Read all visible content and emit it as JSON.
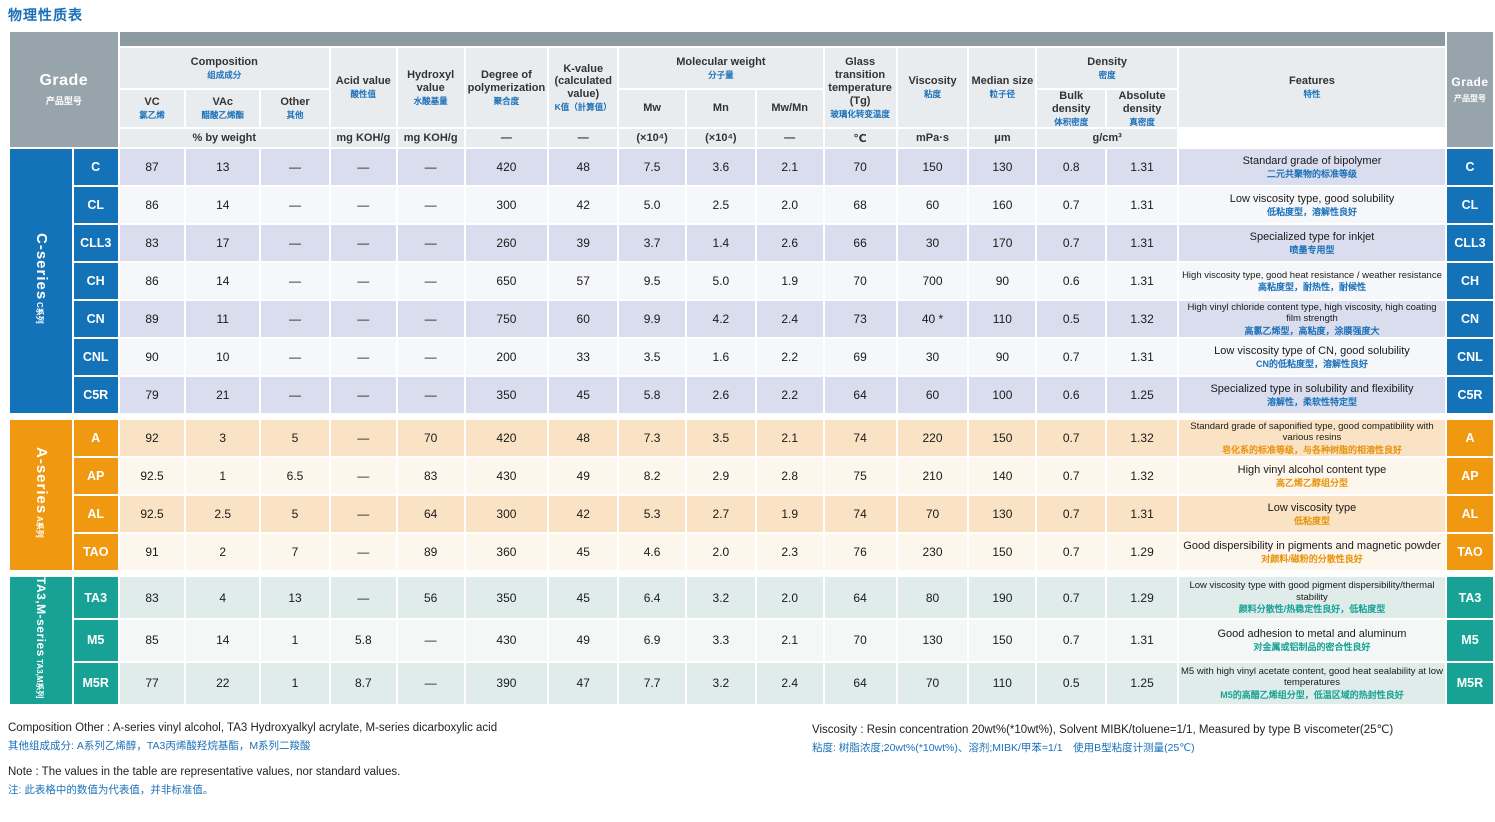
{
  "page_title": "物理性质表",
  "table": {
    "header": {
      "grade": {
        "en": "Grade",
        "zh": "产品型号"
      },
      "composition": {
        "en": "Composition",
        "zh": "组成成分",
        "unit": "% by weight"
      },
      "vc": {
        "en": "VC",
        "zh": "氯乙烯"
      },
      "vac": {
        "en": "VAc",
        "zh": "醋酸乙烯酯"
      },
      "other": {
        "en": "Other",
        "zh": "其他"
      },
      "acid": {
        "en": "Acid value",
        "zh": "酸性值",
        "unit": "mg KOH/g"
      },
      "hydroxyl": {
        "en": "Hydroxyl value",
        "zh": "水酸基量",
        "unit": "mg KOH/g"
      },
      "dp": {
        "en": "Degree of polymerization",
        "zh": "聚合度",
        "unit": "—"
      },
      "kvalue": {
        "en": "K-value (calculated value)",
        "zh": "K值（計算值）",
        "unit": "—"
      },
      "mw_group": {
        "en": "Molecular weight",
        "zh": "分子量"
      },
      "mw": {
        "en": "Mw",
        "unit": "(×10⁴)"
      },
      "mn": {
        "en": "Mn",
        "unit": "(×10⁴)"
      },
      "mwmn": {
        "en": "Mw/Mn",
        "unit": "—"
      },
      "tg": {
        "en": "Glass transition temperature (Tg)",
        "zh": "玻璃化转变温度",
        "unit": "℃"
      },
      "viscosity": {
        "en": "Viscosity",
        "zh": "粘度",
        "unit": "mPa·s"
      },
      "median": {
        "en": "Median size",
        "zh": "粒子径",
        "unit": "μm"
      },
      "density": {
        "en": "Density",
        "zh": "密度",
        "unit": "g/cm³"
      },
      "bulk": {
        "en": "Bulk density",
        "zh": "体积密度"
      },
      "absolute": {
        "en": "Absolute density",
        "zh": "真密度"
      },
      "features": {
        "en": "Features",
        "zh": "特性"
      }
    },
    "series": [
      {
        "name_en": "C-series",
        "name_zh": "C系列",
        "color": "#1472b8",
        "row_bg_odd": "#d9ddee",
        "row_bg_even": "#f6f7fb",
        "feature_zh_color": "#1a70b8",
        "rows": [
          {
            "grade": "C",
            "values": [
              "87",
              "13",
              "—",
              "—",
              "—",
              "420",
              "48",
              "7.5",
              "3.6",
              "2.1",
              "70",
              "150",
              "130",
              "0.8",
              "1.31"
            ],
            "feature_en": "Standard grade of bipolymer",
            "feature_zh": "二元共聚物的标准等级"
          },
          {
            "grade": "CL",
            "values": [
              "86",
              "14",
              "—",
              "—",
              "—",
              "300",
              "42",
              "5.0",
              "2.5",
              "2.0",
              "68",
              "60",
              "160",
              "0.7",
              "1.31"
            ],
            "feature_en": "Low viscosity type, good solubility",
            "feature_zh": "低粘度型，溶解性良好"
          },
          {
            "grade": "CLL3",
            "values": [
              "83",
              "17",
              "—",
              "—",
              "—",
              "260",
              "39",
              "3.7",
              "1.4",
              "2.6",
              "66",
              "30",
              "170",
              "0.7",
              "1.31"
            ],
            "feature_en": "Specialized type for inkjet",
            "feature_zh": "喷墨专用型"
          },
          {
            "grade": "CH",
            "values": [
              "86",
              "14",
              "—",
              "—",
              "—",
              "650",
              "57",
              "9.5",
              "5.0",
              "1.9",
              "70",
              "700",
              "90",
              "0.6",
              "1.31"
            ],
            "feature_en": "High viscosity type, good heat  resistance / weather resistance",
            "feature_zh": "高粘度型，耐热性，耐候性"
          },
          {
            "grade": "CN",
            "values": [
              "89",
              "11",
              "—",
              "—",
              "—",
              "750",
              "60",
              "9.9",
              "4.2",
              "2.4",
              "73",
              "40 *",
              "110",
              "0.5",
              "1.32"
            ],
            "feature_en": "High vinyl chloride content type, high viscosity, high coating film strength",
            "feature_zh": "高氯乙烯型，高粘度，涂膜强度大"
          },
          {
            "grade": "CNL",
            "values": [
              "90",
              "10",
              "—",
              "—",
              "—",
              "200",
              "33",
              "3.5",
              "1.6",
              "2.2",
              "69",
              "30",
              "90",
              "0.7",
              "1.31"
            ],
            "feature_en": "Low viscosity type of CN, good solubility",
            "feature_zh": "CN的低粘度型，溶解性良好"
          },
          {
            "grade": "C5R",
            "values": [
              "79",
              "21",
              "—",
              "—",
              "—",
              "350",
              "45",
              "5.8",
              "2.6",
              "2.2",
              "64",
              "60",
              "100",
              "0.6",
              "1.25"
            ],
            "feature_en": "Specialized type in solubility and flexibility",
            "feature_zh": "溶解性，柔软性特定型"
          }
        ]
      },
      {
        "name_en": "A-series",
        "name_zh": "A系列",
        "color": "#f0980f",
        "row_bg_odd": "#fae3c5",
        "row_bg_even": "#fdf6ec",
        "feature_zh_color": "#e8920a",
        "rows": [
          {
            "grade": "A",
            "values": [
              "92",
              "3",
              "5",
              "—",
              "70",
              "420",
              "48",
              "7.3",
              "3.5",
              "2.1",
              "74",
              "220",
              "150",
              "0.7",
              "1.32"
            ],
            "feature_en": "Standard grade of saponified type, good compatibility with various resins",
            "feature_zh": "皂化系的标准等级，与各种树脂的相溶性良好"
          },
          {
            "grade": "AP",
            "values": [
              "92.5",
              "1",
              "6.5",
              "—",
              "83",
              "430",
              "49",
              "8.2",
              "2.9",
              "2.8",
              "75",
              "210",
              "140",
              "0.7",
              "1.32"
            ],
            "feature_en": "High vinyl alcohol content type",
            "feature_zh": "高乙烯乙醇组分型"
          },
          {
            "grade": "AL",
            "values": [
              "92.5",
              "2.5",
              "5",
              "—",
              "64",
              "300",
              "42",
              "5.3",
              "2.7",
              "1.9",
              "74",
              "70",
              "130",
              "0.7",
              "1.31"
            ],
            "feature_en": "Low viscosity type",
            "feature_zh": "低粘度型"
          },
          {
            "grade": "TAO",
            "values": [
              "91",
              "2",
              "7",
              "—",
              "89",
              "360",
              "45",
              "4.6",
              "2.0",
              "2.3",
              "76",
              "230",
              "150",
              "0.7",
              "1.29"
            ],
            "feature_en": "Good dispersibility in pigments and magnetic powder",
            "feature_zh": "对颜料/磁粉的分散性良好"
          }
        ]
      },
      {
        "name_en": "TA3,M-series",
        "name_zh": "TA3,M系列",
        "color": "#18a295",
        "row_bg_odd": "#dfecea",
        "row_bg_even": "#f3f8f7",
        "feature_zh_color": "#18a295",
        "rows": [
          {
            "grade": "TA3",
            "values": [
              "83",
              "4",
              "13",
              "—",
              "56",
              "350",
              "45",
              "6.4",
              "3.2",
              "2.0",
              "64",
              "80",
              "190",
              "0.7",
              "1.29"
            ],
            "feature_en": "Low viscosity type with good pigment dispersibility/thermal stability",
            "feature_zh": "颜料分散性/热稳定性良好，低粘度型"
          },
          {
            "grade": "M5",
            "values": [
              "85",
              "14",
              "1",
              "5.8",
              "—",
              "430",
              "49",
              "6.9",
              "3.3",
              "2.1",
              "70",
              "130",
              "150",
              "0.7",
              "1.31"
            ],
            "feature_en": "Good adhesion to metal and aluminum",
            "feature_zh": "对金属或铝制品的密合性良好"
          },
          {
            "grade": "M5R",
            "values": [
              "77",
              "22",
              "1",
              "8.7",
              "—",
              "390",
              "47",
              "7.7",
              "3.2",
              "2.4",
              "64",
              "70",
              "110",
              "0.5",
              "1.25"
            ],
            "feature_en": "M5 with high vinyl acetate content, good heat sealability at low temperatures",
            "feature_zh": "M5的高醋乙烯组分型，低温区域的热封性良好"
          }
        ]
      }
    ]
  },
  "footnotes": {
    "composition_en": "Composition Other : A-series vinyl alcohol, TA3 Hydroxyalkyl acrylate, M-series dicarboxylic acid",
    "composition_zh": "其他组成成分:  A系列乙烯醇，TA3丙烯酸羟烷基酯，M系列二羧酸",
    "viscosity_en": "Viscosity : Resin concentration 20wt%(*10wt%), Solvent MIBK/toluene=1/1, Measured by type B viscometer(25℃)",
    "viscosity_zh": "粘度:  树脂浓度;20wt%(*10wt%)、溶剂;MIBK/甲苯=1/1　使用B型粘度计测量(25℃)",
    "note_en": "Note : The values in the table are representative values, nor standard values.",
    "note_zh": "注:  此表格中的数值为代表值，并非标准值。"
  }
}
